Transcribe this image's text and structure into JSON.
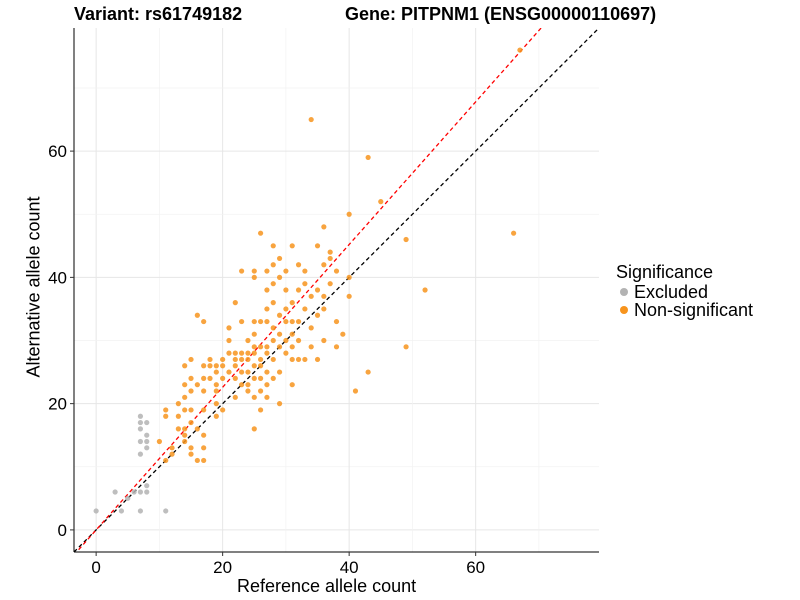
{
  "chart_data": {
    "type": "scatter",
    "title_left": "Variant: rs61749182",
    "title_right": "Gene: PITPNM1 (ENSG00000110697)",
    "xlabel": "Reference allele count",
    "ylabel": "Alternative allele count",
    "xlim": [
      -3.5,
      79.5
    ],
    "ylim": [
      -3.5,
      79.5
    ],
    "x_ticks": [
      0,
      20,
      40,
      60
    ],
    "y_ticks": [
      0,
      20,
      40,
      60
    ],
    "grid": true,
    "legend": {
      "title": "Significance",
      "placement": "right"
    },
    "reference_lines": [
      {
        "style": "dashed",
        "color": "#000000",
        "slope": 1.0,
        "intercept": 0
      },
      {
        "style": "dashed",
        "color": "#ff0000",
        "slope": 1.13,
        "intercept": 0
      }
    ],
    "series": [
      {
        "name": "Excluded",
        "color": "#b3b3b3",
        "points": [
          [
            0,
            3
          ],
          [
            3,
            6
          ],
          [
            4,
            3
          ],
          [
            5,
            5
          ],
          [
            6,
            6
          ],
          [
            7,
            3
          ],
          [
            7,
            6
          ],
          [
            7,
            12
          ],
          [
            7,
            14
          ],
          [
            7,
            16
          ],
          [
            7,
            17
          ],
          [
            7,
            18
          ],
          [
            8,
            6
          ],
          [
            8,
            7
          ],
          [
            8,
            13
          ],
          [
            8,
            14
          ],
          [
            8,
            15
          ],
          [
            8,
            17
          ],
          [
            11,
            3
          ]
        ]
      },
      {
        "name": "Non-significant",
        "color": "#f7941d",
        "points": [
          [
            10,
            14
          ],
          [
            11,
            11
          ],
          [
            11,
            18
          ],
          [
            11,
            19
          ],
          [
            12,
            12
          ],
          [
            12,
            13
          ],
          [
            13,
            16
          ],
          [
            13,
            18
          ],
          [
            13,
            20
          ],
          [
            14,
            14
          ],
          [
            14,
            15
          ],
          [
            14,
            16
          ],
          [
            14,
            19
          ],
          [
            14,
            21
          ],
          [
            14,
            23
          ],
          [
            14,
            26
          ],
          [
            15,
            12
          ],
          [
            15,
            13
          ],
          [
            15,
            17
          ],
          [
            15,
            19
          ],
          [
            15,
            22
          ],
          [
            15,
            24
          ],
          [
            15,
            27
          ],
          [
            16,
            11
          ],
          [
            16,
            16
          ],
          [
            16,
            23
          ],
          [
            16,
            34
          ],
          [
            17,
            11
          ],
          [
            17,
            13
          ],
          [
            17,
            15
          ],
          [
            17,
            19
          ],
          [
            17,
            22
          ],
          [
            17,
            24
          ],
          [
            17,
            26
          ],
          [
            17,
            33
          ],
          [
            18,
            24
          ],
          [
            18,
            26
          ],
          [
            18,
            27
          ],
          [
            19,
            18
          ],
          [
            19,
            20
          ],
          [
            19,
            22
          ],
          [
            19,
            23
          ],
          [
            19,
            25
          ],
          [
            19,
            26
          ],
          [
            20,
            19
          ],
          [
            20,
            24
          ],
          [
            20,
            26
          ],
          [
            20,
            27
          ],
          [
            21,
            25
          ],
          [
            21,
            28
          ],
          [
            21,
            30
          ],
          [
            21,
            32
          ],
          [
            22,
            21
          ],
          [
            22,
            24
          ],
          [
            22,
            26
          ],
          [
            22,
            27
          ],
          [
            22,
            28
          ],
          [
            22,
            36
          ],
          [
            23,
            23
          ],
          [
            23,
            25
          ],
          [
            23,
            27
          ],
          [
            23,
            28
          ],
          [
            23,
            33
          ],
          [
            23,
            41
          ],
          [
            24,
            22
          ],
          [
            24,
            23
          ],
          [
            24,
            25
          ],
          [
            24,
            27
          ],
          [
            24,
            28
          ],
          [
            24,
            30
          ],
          [
            25,
            16
          ],
          [
            25,
            21
          ],
          [
            25,
            24
          ],
          [
            25,
            26
          ],
          [
            25,
            28
          ],
          [
            25,
            29
          ],
          [
            25,
            31
          ],
          [
            25,
            33
          ],
          [
            25,
            40
          ],
          [
            25,
            41
          ],
          [
            26,
            19
          ],
          [
            26,
            22
          ],
          [
            26,
            24
          ],
          [
            26,
            26
          ],
          [
            26,
            27
          ],
          [
            26,
            29
          ],
          [
            26,
            33
          ],
          [
            26,
            47
          ],
          [
            27,
            21
          ],
          [
            27,
            23
          ],
          [
            27,
            25
          ],
          [
            27,
            28
          ],
          [
            27,
            29
          ],
          [
            27,
            33
          ],
          [
            27,
            35
          ],
          [
            27,
            38
          ],
          [
            27,
            41
          ],
          [
            28,
            24
          ],
          [
            28,
            27
          ],
          [
            28,
            30
          ],
          [
            28,
            32
          ],
          [
            28,
            36
          ],
          [
            28,
            39
          ],
          [
            28,
            42
          ],
          [
            28,
            45
          ],
          [
            29,
            20
          ],
          [
            29,
            25
          ],
          [
            29,
            29
          ],
          [
            29,
            31
          ],
          [
            29,
            34
          ],
          [
            29,
            40
          ],
          [
            29,
            43
          ],
          [
            30,
            28
          ],
          [
            30,
            30
          ],
          [
            30,
            33
          ],
          [
            30,
            35
          ],
          [
            30,
            38
          ],
          [
            30,
            41
          ],
          [
            31,
            23
          ],
          [
            31,
            27
          ],
          [
            31,
            29
          ],
          [
            31,
            31
          ],
          [
            31,
            33
          ],
          [
            31,
            36
          ],
          [
            31,
            45
          ],
          [
            32,
            27
          ],
          [
            32,
            30
          ],
          [
            32,
            33
          ],
          [
            32,
            38
          ],
          [
            32,
            42
          ],
          [
            33,
            27
          ],
          [
            33,
            35
          ],
          [
            33,
            39
          ],
          [
            33,
            41
          ],
          [
            34,
            29
          ],
          [
            34,
            32
          ],
          [
            34,
            37
          ],
          [
            34,
            65
          ],
          [
            35,
            27
          ],
          [
            35,
            34
          ],
          [
            35,
            38
          ],
          [
            35,
            45
          ],
          [
            36,
            30
          ],
          [
            36,
            35
          ],
          [
            36,
            37
          ],
          [
            36,
            42
          ],
          [
            36,
            48
          ],
          [
            37,
            39
          ],
          [
            37,
            43
          ],
          [
            37,
            44
          ],
          [
            38,
            29
          ],
          [
            38,
            33
          ],
          [
            38,
            41
          ],
          [
            39,
            31
          ],
          [
            40,
            37
          ],
          [
            40,
            40
          ],
          [
            40,
            50
          ],
          [
            41,
            22
          ],
          [
            43,
            25
          ],
          [
            43,
            59
          ],
          [
            45,
            52
          ],
          [
            49,
            29
          ],
          [
            49,
            46
          ],
          [
            52,
            38
          ],
          [
            66,
            47
          ],
          [
            67,
            76
          ]
        ]
      }
    ]
  }
}
